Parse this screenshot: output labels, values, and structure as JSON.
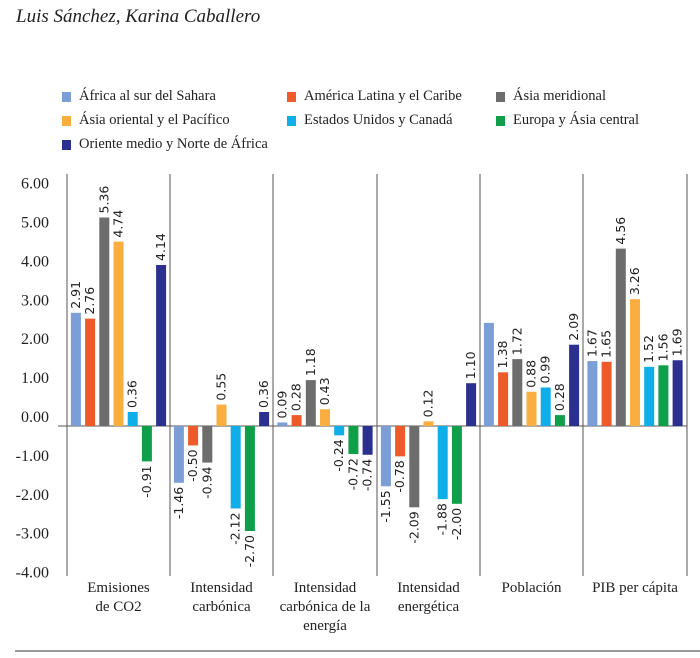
{
  "author": "Luis Sánchez, Karina Caballero",
  "chart_data": {
    "type": "bar",
    "title": "",
    "xlabel": "",
    "ylabel": "",
    "ylim": [
      -4,
      6
    ],
    "yticks": [
      "6.00",
      "5.00",
      "4.00",
      "3.00",
      "2.00",
      "1.00",
      "0.00",
      "-1.00",
      "-2.00",
      "-3.00",
      "-4.00"
    ],
    "ytick_values": [
      6,
      5,
      4,
      3,
      2,
      1,
      0,
      -1,
      -2,
      -3,
      -4
    ],
    "grid": false,
    "legend_position": "top",
    "categories": [
      [
        "Emisiones",
        "de CO2"
      ],
      [
        "Intensidad",
        "carbónica"
      ],
      [
        "Intensidad",
        "carbónica de la",
        "energía"
      ],
      [
        "Intensidad",
        "energética"
      ],
      [
        "Población"
      ],
      [
        "PIB per cápita"
      ]
    ],
    "series": [
      {
        "name": "África al sur del Sahara",
        "color": "#7b9ed6",
        "values": [
          2.91,
          -1.46,
          0.09,
          -1.55,
          2.65,
          1.67
        ],
        "labels": [
          "2.91",
          "-1.46",
          "0.09",
          "-1.55",
          "",
          "1.67"
        ]
      },
      {
        "name": "América Latina y el Caribe",
        "color": "#ef5a2a",
        "values": [
          2.76,
          -0.5,
          0.28,
          -0.78,
          1.38,
          1.65
        ],
        "labels": [
          "2.76",
          "-0.50",
          "0.28",
          "-0.78",
          "1.38",
          "1.65"
        ]
      },
      {
        "name": "Ásia meridional",
        "color": "#6d6d6d",
        "values": [
          5.36,
          -0.94,
          1.18,
          -2.09,
          1.72,
          4.56
        ],
        "labels": [
          "5.36",
          "-0.94",
          "1.18",
          "-2.09",
          "1.72",
          "4.56"
        ]
      },
      {
        "name": "Ásia oriental y el Pacífico",
        "color": "#fbae40",
        "values": [
          4.74,
          0.55,
          0.43,
          0.12,
          0.88,
          3.26
        ],
        "labels": [
          "4.74",
          "0.55",
          "0.43",
          "0.12",
          "0.88",
          "3.26"
        ]
      },
      {
        "name": "Estados Unidos y Canadá",
        "color": "#10aee8",
        "values": [
          0.36,
          -2.12,
          -0.24,
          -1.88,
          0.99,
          1.52
        ],
        "labels": [
          "0.36",
          "-2.12",
          "-0.24",
          "-1.88",
          "0.99",
          "1.52"
        ]
      },
      {
        "name": "Europa y Ásia central",
        "color": "#0f9e4a",
        "values": [
          -0.91,
          -2.7,
          -0.72,
          -2.0,
          0.28,
          1.56
        ],
        "labels": [
          "-0.91",
          "-2.70",
          "-0.72",
          "-2.00",
          "0.28",
          "1.56"
        ]
      },
      {
        "name": "Oriente medio y Norte de África",
        "color": "#2b2f8f",
        "values": [
          4.14,
          0.36,
          -0.74,
          1.1,
          2.09,
          1.69
        ],
        "labels": [
          "4.14",
          "0.36",
          "-0.74",
          "1.10",
          "2.09",
          "1.69"
        ]
      }
    ]
  }
}
